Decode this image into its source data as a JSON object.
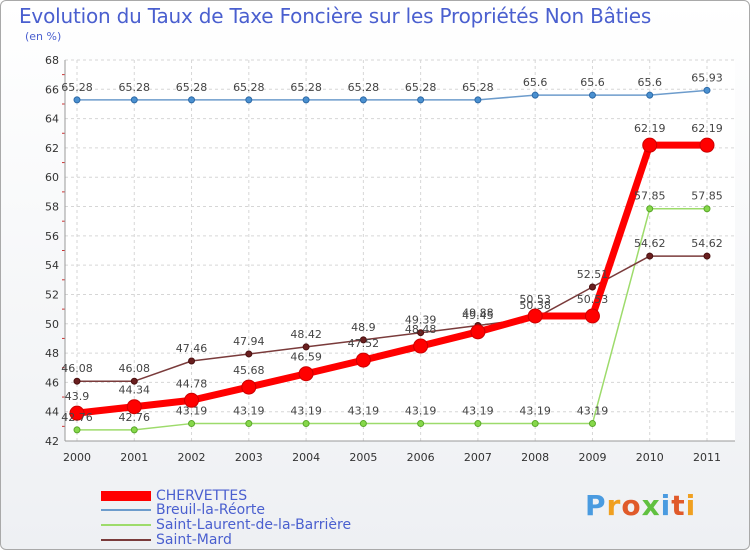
{
  "chart_data": {
    "type": "line",
    "title": "Evolution du Taux de Taxe Foncière sur les Propriétés Non Bâties",
    "subtitle": "(en %)",
    "xlabel": "",
    "ylabel": "",
    "ylim": [
      42,
      68
    ],
    "ytick_step": 2,
    "grid": true,
    "legend_position": "bottom-left",
    "categories": [
      "2000",
      "2001",
      "2002",
      "2003",
      "2004",
      "2005",
      "2006",
      "2007",
      "2008",
      "2009",
      "2010",
      "2011"
    ],
    "series": [
      {
        "name": "CHERVETTES",
        "color": "#ff0000",
        "values": [
          43.9,
          44.34,
          44.78,
          45.68,
          46.59,
          47.52,
          48.48,
          49.45,
          50.53,
          50.53,
          62.19,
          62.19
        ],
        "labels": [
          "43.9",
          "44.34",
          "44.78",
          "45.68",
          "46.59",
          "47.52",
          "48.48",
          "49.45",
          "50.53",
          "50.53",
          "62.19",
          "62.19"
        ]
      },
      {
        "name": "Breuil-la-Réorte",
        "color": "#6d9ccc",
        "values": [
          65.28,
          65.28,
          65.28,
          65.28,
          65.28,
          65.28,
          65.28,
          65.28,
          65.6,
          65.6,
          65.6,
          65.93
        ],
        "labels": [
          "65.28",
          "65.28",
          "65.28",
          "65.28",
          "65.28",
          "65.28",
          "65.28",
          "65.28",
          "65.6",
          "65.6",
          "65.6",
          "65.93"
        ]
      },
      {
        "name": "Saint-Laurent-de-la-Barrière",
        "color": "#9ddb6b",
        "values": [
          42.76,
          42.76,
          43.19,
          43.19,
          43.19,
          43.19,
          43.19,
          43.19,
          43.19,
          43.19,
          57.85,
          57.85
        ],
        "labels": [
          "42.76",
          "42.76",
          "43.19",
          "43.19",
          "43.19",
          "43.19",
          "43.19",
          "43.19",
          "43.19",
          "43.19",
          "57.85",
          "57.85"
        ]
      },
      {
        "name": "Saint-Mard",
        "color": "#7a3b3b",
        "values": [
          46.08,
          46.08,
          47.46,
          47.94,
          48.42,
          48.9,
          49.39,
          49.88,
          50.38,
          52.51,
          54.62,
          54.62
        ],
        "labels": [
          "46.08",
          "46.08",
          "47.46",
          "47.94",
          "48.42",
          "48.9",
          "49.39",
          "49.88",
          "50.38",
          "52.51",
          "54.62",
          "54.62"
        ]
      }
    ]
  },
  "logo": {
    "text": "Proxiti",
    "letter_colors": [
      "#4a9be0",
      "#f0a020",
      "#e05a2a",
      "#60c040",
      "#4a9be0",
      "#e05a2a",
      "#f0a020"
    ]
  }
}
